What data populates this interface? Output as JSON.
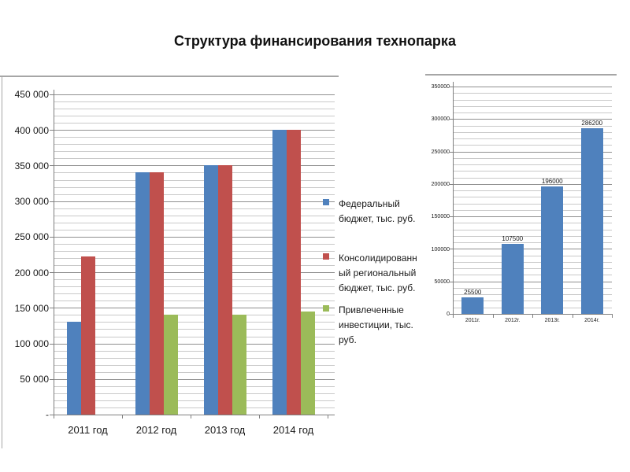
{
  "title": "Структура финансирования технопарка",
  "colors": {
    "blue": "#4F81BD",
    "red": "#C0504D",
    "green": "#9BBB59",
    "grid_major": "#8f8f8f",
    "grid_minor": "#c9c9c9",
    "axis": "#7f7f7f",
    "frame": "#a6a6a6"
  },
  "chart_data": [
    {
      "type": "bar",
      "title": "",
      "categories": [
        "2011 год",
        "2012 год",
        "2013 год",
        "2014 год"
      ],
      "series": [
        {
          "name": "Федеральный бюджет, тыс. руб.",
          "color_key": "blue",
          "values": [
            130000,
            340000,
            350000,
            400000
          ]
        },
        {
          "name": "Консолидированный региональный бюджет, тыс. руб.",
          "color_key": "red",
          "values": [
            222000,
            340000,
            350000,
            400000
          ]
        },
        {
          "name": "Привлеченные инвестиции, тыс. руб.",
          "color_key": "green",
          "values": [
            0,
            140000,
            140000,
            145000
          ]
        }
      ],
      "ylim": [
        0,
        450000
      ],
      "ytick_step": 50000,
      "minor_step": 10000,
      "ytick_labels": [
        "-",
        "50 000",
        "100 000",
        "150 000",
        "200 000",
        "250 000",
        "300 000",
        "350 000",
        "400 000",
        "450 000"
      ],
      "grid": true,
      "legend_position": "right"
    },
    {
      "type": "bar",
      "title": "",
      "categories": [
        "2011г.",
        "2012г.",
        "2013г.",
        "2014г."
      ],
      "series": [
        {
          "name": "",
          "color_key": "blue",
          "values": [
            25500,
            107500,
            196000,
            286200
          ]
        }
      ],
      "data_labels": [
        "25500",
        "107500",
        "196000",
        "286200"
      ],
      "ylim": [
        0,
        350000
      ],
      "ytick_step": 50000,
      "minor_step": 10000,
      "ytick_labels": [
        "0",
        "50000",
        "100000",
        "150000",
        "200000",
        "250000",
        "300000",
        "350000"
      ],
      "grid": true,
      "legend_position": "none"
    }
  ]
}
